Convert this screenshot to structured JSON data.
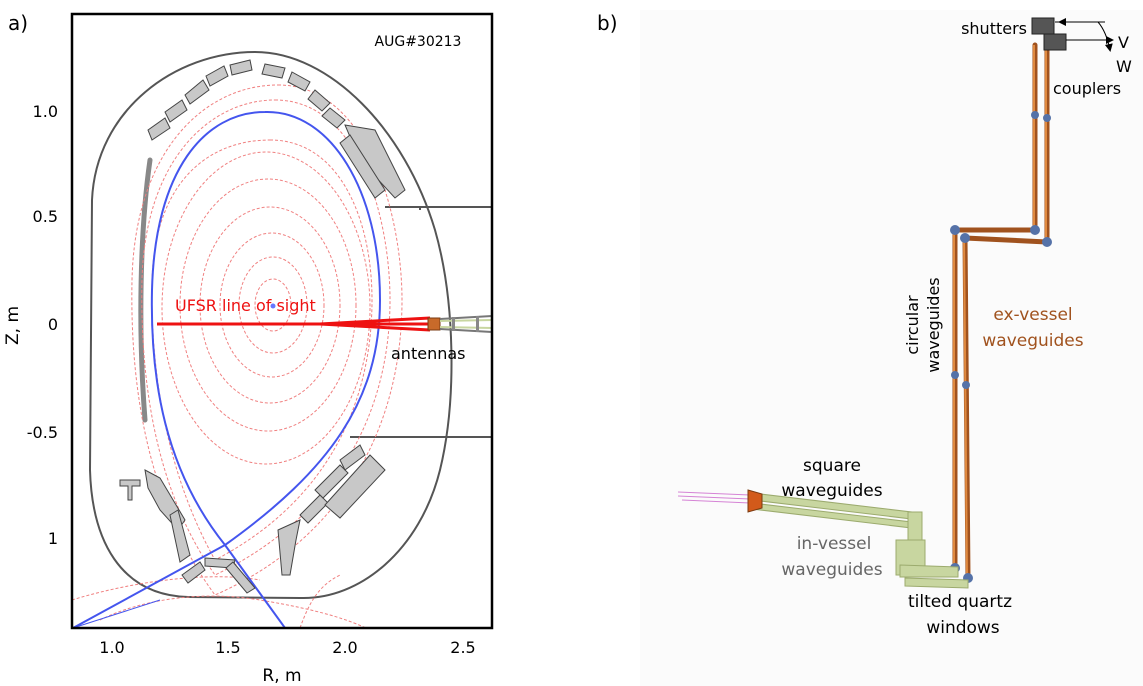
{
  "panel_a": {
    "label": "a)",
    "shot": "AUG#30213",
    "x_axis_label": "R, m",
    "y_axis_label": "Z, m",
    "x_ticks": [
      "1.0",
      "1.5",
      "2.0",
      "2.5"
    ],
    "y_ticks": [
      "1.0",
      "0.5",
      "0",
      "-0.5",
      "1"
    ],
    "los_label": "UFSR line of sight",
    "antennas_label": "antennas",
    "colors": {
      "flux": "#f08080",
      "separatrix": "#4455ee",
      "line_of_sight": "#ee1111",
      "wall": "#555555",
      "tiles": "#c8c8c8"
    }
  },
  "panel_b": {
    "label": "b)",
    "shutters": "shutters",
    "couplers": "couplers",
    "v": "V",
    "w": "W",
    "circular_1": "circular",
    "circular_2": "waveguides",
    "exvessel_1": "ex-vessel",
    "exvessel_2": "waveguides",
    "square_1": "square",
    "square_2": "waveguides",
    "invessel_1": "in-vessel",
    "invessel_2": "waveguides",
    "tilted_1": "tilted quartz",
    "tilted_2": "windows",
    "colors": {
      "ex_vessel": "#a0521e",
      "in_vessel": "#c8d6a0",
      "joint": "#5572a8",
      "shutter": "#555555",
      "beam": "#cc66cc"
    }
  }
}
